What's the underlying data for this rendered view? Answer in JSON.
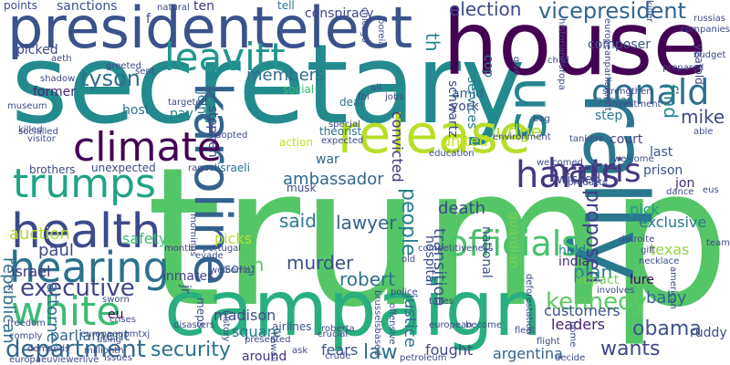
{
  "words": [
    {
      "text": "trump",
      "color": "#55c667"
    },
    {
      "text": "secretary",
      "color": "#238a8d"
    },
    {
      "text": "house",
      "color": "#440154"
    },
    {
      "text": "presidentelect",
      "color": "#3b528b"
    },
    {
      "text": "campaign",
      "color": "#29af7f"
    },
    {
      "text": "rally",
      "color": "#2a788e"
    },
    {
      "text": "release",
      "color": "#b8de29"
    },
    {
      "text": "karoline",
      "color": "#33638d"
    },
    {
      "text": "climate",
      "color": "#440154"
    },
    {
      "text": "health",
      "color": "#3e4a89"
    },
    {
      "text": "trumps",
      "color": "#20a386"
    },
    {
      "text": "hearing",
      "color": "#2d718e"
    },
    {
      "text": "harris",
      "color": "#453781"
    },
    {
      "text": "white",
      "color": "#3cbb75"
    },
    {
      "text": "donald",
      "color": "#2d718e"
    },
    {
      "text": "leavitt",
      "color": "#1f968b"
    },
    {
      "text": "us",
      "color": "#25848e"
    },
    {
      "text": "officials",
      "color": "#4ac16d"
    },
    {
      "text": "executive",
      "color": "#414487"
    },
    {
      "text": "department",
      "color": "#31688e"
    },
    {
      "text": "vicepresident",
      "color": "#32648e"
    },
    {
      "text": "election",
      "color": "#3e4989"
    },
    {
      "text": "tyson",
      "color": "#2e6f8e"
    },
    {
      "text": "kennedy",
      "color": "#5ec962"
    },
    {
      "text": "security",
      "color": "#2c728e"
    },
    {
      "text": "wants",
      "color": "#404688"
    },
    {
      "text": "people",
      "color": "#277f8e"
    },
    {
      "text": "proposed",
      "color": "#414287"
    },
    {
      "text": "obama",
      "color": "#3b528b"
    },
    {
      "text": "mike",
      "color": "#3f4788"
    },
    {
      "text": "lawyer",
      "color": "#33628d"
    },
    {
      "text": "said",
      "color": "#2a788e"
    },
    {
      "text": "murder",
      "color": "#3c4f8a"
    },
    {
      "text": "robert",
      "color": "#2c728e"
    },
    {
      "text": "plan",
      "color": "#26818e"
    },
    {
      "text": "law",
      "color": "#2e6e8e"
    },
    {
      "text": "ambassador",
      "color": "#31688e"
    },
    {
      "text": "harris",
      "color": "#453781"
    },
    {
      "text": "find",
      "color": "#26828e"
    },
    {
      "text": "judge",
      "color": "#a8db34"
    },
    {
      "text": "paul",
      "color": "#3e4c8a"
    },
    {
      "text": "republican",
      "color": "#2d708e"
    },
    {
      "text": "attorney",
      "color": "#2e6d8e"
    },
    {
      "text": "auction",
      "color": "#b5de2b"
    },
    {
      "text": "baby",
      "color": "#31678e"
    },
    {
      "text": "death",
      "color": "#3f4889"
    },
    {
      "text": "members",
      "color": "#2e6f8e"
    },
    {
      "text": "transition",
      "color": "#3b528b"
    },
    {
      "text": "justice",
      "color": "#2d718e"
    },
    {
      "text": "united",
      "color": "#cde11d"
    },
    {
      "text": "convicted",
      "color": "#463480"
    },
    {
      "text": "israel",
      "color": "#46337e"
    },
    {
      "text": "parliament",
      "color": "#31688e"
    },
    {
      "text": "customers",
      "color": "#3b528b"
    },
    {
      "text": "leaders",
      "color": "#481f70"
    },
    {
      "text": "argentina",
      "color": "#32658e"
    },
    {
      "text": "fears",
      "color": "#39568c"
    },
    {
      "text": "fought",
      "color": "#3f4788"
    },
    {
      "text": "around",
      "color": "#453781"
    },
    {
      "text": "madison",
      "color": "#3e4a89"
    },
    {
      "text": "square",
      "color": "#2a788e"
    },
    {
      "text": "safety",
      "color": "#3cbb75"
    },
    {
      "text": "picks",
      "color": "#b5de2b"
    },
    {
      "text": "pick",
      "color": "#1e9b8a"
    },
    {
      "text": "exclusive",
      "color": "#2a768e"
    },
    {
      "text": "texas",
      "color": "#90d743"
    },
    {
      "text": "song",
      "color": "#355e8d"
    },
    {
      "text": "inmates",
      "color": "#404588"
    },
    {
      "text": "held",
      "color": "#26828e"
    },
    {
      "text": "india",
      "color": "#472c7a"
    },
    {
      "text": "prison",
      "color": "#3b528b"
    },
    {
      "text": "court",
      "color": "#3e4989"
    },
    {
      "text": "step",
      "color": "#2a788e"
    },
    {
      "text": "last",
      "color": "#3a548c"
    },
    {
      "text": "amid",
      "color": "#32658e"
    },
    {
      "text": "york",
      "color": "#3f4889"
    },
    {
      "text": "hospital",
      "color": "#3e4a89"
    },
    {
      "text": "national",
      "color": "#3b528b"
    },
    {
      "text": "guardian",
      "color": "#7ad151"
    },
    {
      "text": "impact",
      "color": "#75d054"
    },
    {
      "text": "lure",
      "color": "#440154"
    },
    {
      "text": "ruddy",
      "color": "#3e4a89"
    },
    {
      "text": "jon",
      "color": "#472d7b"
    },
    {
      "text": "israeli",
      "color": "#2e6e8e"
    },
    {
      "text": "musk",
      "color": "#3e4989"
    },
    {
      "text": "war",
      "color": "#32658e"
    },
    {
      "text": "action",
      "color": "#c2df23"
    },
    {
      "text": "theorist",
      "color": "#2c728e"
    },
    {
      "text": "deal",
      "color": "#2c738e"
    },
    {
      "text": "social",
      "color": "#3aba76"
    },
    {
      "text": "former",
      "color": "#482475"
    },
    {
      "text": "picked",
      "color": "#404588"
    },
    {
      "text": "host",
      "color": "#2d718e"
    },
    {
      "text": "pay",
      "color": "#277f8e"
    },
    {
      "text": "joins",
      "color": "#2c738e"
    },
    {
      "text": "stephen",
      "color": "#404688"
    },
    {
      "text": "jr",
      "color": "#3e4a89"
    },
    {
      "text": "meps",
      "color": "#3e4c8a"
    },
    {
      "text": "un",
      "color": "#5ec962"
    },
    {
      "text": "eu",
      "color": "#440154"
    },
    {
      "text": "airlines",
      "color": "#3b528b"
    },
    {
      "text": "sanctions",
      "color": "#3b528b"
    },
    {
      "text": "points",
      "color": "#3e4c8a"
    },
    {
      "text": "ten",
      "color": "#46337e"
    },
    {
      "text": "tell",
      "color": "#2d718e"
    },
    {
      "text": "conspiracy",
      "color": "#3f4788"
    },
    {
      "text": "composer",
      "color": "#3b528b"
    },
    {
      "text": "garden",
      "color": "#2c738e"
    },
    {
      "text": "services",
      "color": "#25848e"
    },
    {
      "text": "schwartz",
      "color": "#3e4a89"
    },
    {
      "text": "cop",
      "color": "#2c728e"
    },
    {
      "text": "th",
      "color": "#26828e"
    },
    {
      "text": "brothers",
      "color": "#3f4889"
    },
    {
      "text": "unexpected",
      "color": "#3e4a89"
    },
    {
      "text": "month",
      "color": "#453781"
    },
    {
      "text": "wicked",
      "color": "#3e4a89"
    },
    {
      "text": "yearold",
      "color": "#414487"
    },
    {
      "text": "f",
      "color": "#3b528b"
    },
    {
      "text": "x",
      "color": "#3e4a89"
    },
    {
      "text": "fbi",
      "color": "#3e4a89"
    },
    {
      "text": "child",
      "color": "#3e4a89"
    },
    {
      "text": "killer",
      "color": "#3e4a89"
    },
    {
      "text": "team",
      "color": "#3e4a89"
    },
    {
      "text": "dance",
      "color": "#3e4a89"
    },
    {
      "text": "able",
      "color": "#3e4a89"
    },
    {
      "text": "necklace",
      "color": "#3e4a89"
    },
    {
      "text": "gift",
      "color": "#3e4a89"
    },
    {
      "text": "police",
      "color": "#3e4a89"
    },
    {
      "text": "crucial",
      "color": "#3e4a89"
    },
    {
      "text": "become",
      "color": "#3e4a89"
    },
    {
      "text": "flight",
      "color": "#3e4a89"
    },
    {
      "text": "fleet",
      "color": "#3e4a89"
    },
    {
      "text": "home",
      "color": "#3e4a89"
    },
    {
      "text": "issues",
      "color": "#3e4a89"
    },
    {
      "text": "ask",
      "color": "#3e4a89"
    },
    {
      "text": "hawaii",
      "color": "#3e4a89"
    },
    {
      "text": "offensive",
      "color": "#3e4a89"
    },
    {
      "text": "takes",
      "color": "#3e4a89"
    },
    {
      "text": "decide",
      "color": "#3e4a89"
    },
    {
      "text": "involves",
      "color": "#3e4a89"
    },
    {
      "text": "american",
      "color": "#3e4a89"
    },
    {
      "text": "investment",
      "color": "#3e4a89"
    },
    {
      "text": "strengthen",
      "color": "#3e4a89"
    },
    {
      "text": "eus",
      "color": "#3e4a89"
    },
    {
      "text": "tankers",
      "color": "#3e4a89"
    },
    {
      "text": "welcome",
      "color": "#3e4a89"
    },
    {
      "text": "targeted",
      "color": "#3e4a89"
    },
    {
      "text": "killed",
      "color": "#3e4a89"
    },
    {
      "text": "visitor",
      "color": "#3e4a89"
    },
    {
      "text": "shadow",
      "color": "#3e4a89"
    },
    {
      "text": "freedom",
      "color": "#3e4a89"
    },
    {
      "text": "comply",
      "color": "#3e4a89"
    },
    {
      "text": "sworn",
      "color": "#3e4a89"
    },
    {
      "text": "crises",
      "color": "#3e4a89"
    },
    {
      "text": "using",
      "color": "#3e4a89"
    },
    {
      "text": "sent",
      "color": "#3e4a89"
    },
    {
      "text": "demands",
      "color": "#3e4a89"
    },
    {
      "text": "millionth",
      "color": "#3e4a89"
    },
    {
      "text": "presented",
      "color": "#3e4a89"
    },
    {
      "text": "deforestation",
      "color": "#3e4a89"
    },
    {
      "text": "environment",
      "color": "#3e4a89"
    },
    {
      "text": "old",
      "color": "#3e4a89"
    },
    {
      "text": "russias",
      "color": "#3e4a89"
    },
    {
      "text": "companies",
      "color": "#3e4a89"
    },
    {
      "text": "budget",
      "color": "#3e4a89"
    },
    {
      "text": "prepared",
      "color": "#3e4a89"
    },
    {
      "text": "historianeuropa",
      "color": "#3e4a89"
    },
    {
      "text": "competitiveness",
      "color": "#3e4a89"
    },
    {
      "text": "education",
      "color": "#3e4a89"
    },
    {
      "text": "special",
      "color": "#3e4a89"
    },
    {
      "text": "jobs",
      "color": "#3e4a89"
    },
    {
      "text": "oil",
      "color": "#3e4a89"
    },
    {
      "text": "bag",
      "color": "#3e4a89"
    },
    {
      "text": "portugal",
      "color": "#3e4a89"
    },
    {
      "text": "evade",
      "color": "#3e4a89"
    },
    {
      "text": "disasters",
      "color": "#3e4a89"
    },
    {
      "text": "raquel",
      "color": "#3e4a89"
    },
    {
      "text": "expected",
      "color": "#3e4a89"
    },
    {
      "text": "adopted",
      "color": "#3e4a89"
    },
    {
      "text": "natural",
      "color": "#3e4a89"
    },
    {
      "text": "roberta",
      "color": "#3e4a89"
    },
    {
      "text": "petroleum",
      "color": "#3e4a89"
    },
    {
      "text": "crude",
      "color": "#3e4a89"
    },
    {
      "text": "european",
      "color": "#3e4a89"
    },
    {
      "text": "products",
      "color": "#3e4a89"
    },
    {
      "text": "welcomed",
      "color": "#3e4a89"
    },
    {
      "text": "europeanparliament",
      "color": "#3e4a89"
    },
    {
      "text": "brusselsbased",
      "color": "#3e4a89"
    },
    {
      "text": "europaeupmtxj",
      "color": "#3e4a89"
    },
    {
      "text": "europaeuviewerlive",
      "color": "#3e4a89"
    },
    {
      "text": "history",
      "color": "#3e4a89"
    },
    {
      "text": "socialled",
      "color": "#3e4a89"
    },
    {
      "text": "museum",
      "color": "#3e4a89"
    },
    {
      "text": "give",
      "color": "#3e4a89"
    },
    {
      "text": "aeth",
      "color": "#3e4a89"
    },
    {
      "text": "greeted",
      "color": "#3e4a89"
    },
    {
      "text": "chicago",
      "color": "#3e4a89"
    },
    {
      "text": "poreia",
      "color": "#3e4a89"
    },
    {
      "text": "mornings",
      "color": "#3e4a89"
    },
    {
      "text": "welcome",
      "color": "#3e4a89"
    },
    {
      "text": "detroite",
      "color": "#3e4a89"
    }
  ]
}
